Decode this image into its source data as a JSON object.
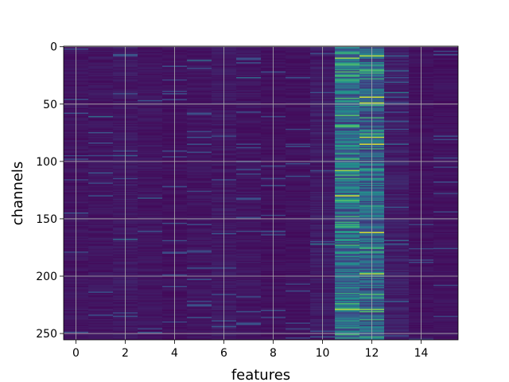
{
  "chart_data": {
    "type": "heatmap",
    "title": "",
    "xlabel": "features",
    "ylabel": "channels",
    "x_range": [
      -0.5,
      15.5
    ],
    "y_range": [
      -0.5,
      255.5
    ],
    "y_inverted": true,
    "x_ticks": [
      "0",
      "2",
      "4",
      "6",
      "8",
      "10",
      "12",
      "14"
    ],
    "y_ticks": [
      "0",
      "50",
      "100",
      "150",
      "200",
      "250"
    ],
    "grid": true,
    "colormap": "viridis",
    "value_range": [
      0,
      1
    ],
    "n_rows": 256,
    "n_cols": 16,
    "column_mean": [
      0.06,
      0.06,
      0.07,
      0.06,
      0.05,
      0.06,
      0.07,
      0.06,
      0.05,
      0.05,
      0.08,
      0.35,
      0.3,
      0.09,
      0.05,
      0.05
    ],
    "highlights": [
      {
        "feature": 11,
        "channel": 5,
        "value": 0.6
      },
      {
        "feature": 11,
        "channel": 10,
        "value": 0.85
      },
      {
        "feature": 11,
        "channel": 15,
        "value": 0.65
      },
      {
        "feature": 11,
        "channel": 22,
        "value": 0.7
      },
      {
        "feature": 11,
        "channel": 30,
        "value": 0.55
      },
      {
        "feature": 11,
        "channel": 48,
        "value": 0.55
      },
      {
        "feature": 11,
        "channel": 52,
        "value": 0.5
      },
      {
        "feature": 11,
        "channel": 70,
        "value": 0.6
      },
      {
        "feature": 11,
        "channel": 86,
        "value": 0.55
      },
      {
        "feature": 11,
        "channel": 108,
        "value": 0.85
      },
      {
        "feature": 11,
        "channel": 112,
        "value": 0.65
      },
      {
        "feature": 11,
        "channel": 130,
        "value": 0.95
      },
      {
        "feature": 11,
        "channel": 180,
        "value": 0.55
      },
      {
        "feature": 11,
        "channel": 228,
        "value": 0.6
      },
      {
        "feature": 11,
        "channel": 245,
        "value": 0.55
      },
      {
        "feature": 12,
        "channel": 8,
        "value": 0.9
      },
      {
        "feature": 12,
        "channel": 14,
        "value": 0.5
      },
      {
        "feature": 12,
        "channel": 28,
        "value": 0.6
      },
      {
        "feature": 12,
        "channel": 44,
        "value": 0.95
      },
      {
        "feature": 12,
        "channel": 49,
        "value": 0.9
      },
      {
        "feature": 12,
        "channel": 79,
        "value": 0.9
      },
      {
        "feature": 12,
        "channel": 85,
        "value": 0.95
      },
      {
        "feature": 12,
        "channel": 115,
        "value": 0.55
      },
      {
        "feature": 12,
        "channel": 162,
        "value": 0.95
      },
      {
        "feature": 12,
        "channel": 198,
        "value": 0.9
      },
      {
        "feature": 12,
        "channel": 231,
        "value": 0.7
      },
      {
        "feature": 10,
        "channel": 172,
        "value": 0.4
      },
      {
        "feature": 13,
        "channel": 40,
        "value": 0.4
      },
      {
        "feature": 1,
        "channel": 61,
        "value": 0.35
      },
      {
        "feature": 5,
        "channel": 12,
        "value": 0.35
      },
      {
        "feature": 7,
        "channel": 27,
        "value": 0.35
      },
      {
        "feature": 3,
        "channel": 132,
        "value": 0.3
      },
      {
        "feature": 2,
        "channel": 168,
        "value": 0.35
      }
    ]
  }
}
